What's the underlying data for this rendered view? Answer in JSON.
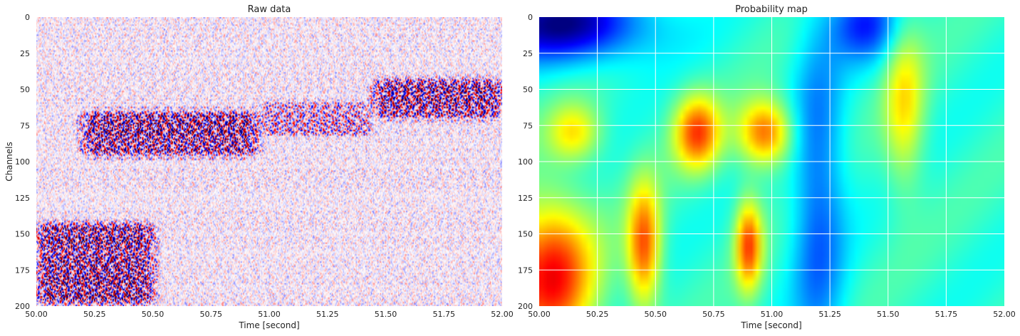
{
  "chart_data": [
    {
      "type": "heatmap",
      "title": "Raw data",
      "xlabel": "Time [second]",
      "ylabel": "Channels",
      "xlim": [
        50.0,
        52.0
      ],
      "ylim": [
        200,
        0
      ],
      "xticks": [
        "50.00",
        "50.25",
        "50.50",
        "50.75",
        "51.00",
        "51.25",
        "51.50",
        "51.75",
        "52.00"
      ],
      "yticks": [
        "0",
        "25",
        "50",
        "75",
        "100",
        "125",
        "150",
        "175",
        "200"
      ],
      "colormap": "seismic",
      "grid": false,
      "features": [
        {
          "x_range": [
            50.2,
            50.95
          ],
          "channel_range": [
            62,
            98
          ],
          "strength": 0.9
        },
        {
          "x_range": [
            50.0,
            50.5
          ],
          "channel_range": [
            140,
            200
          ],
          "strength": 1.0
        },
        {
          "x_range": [
            51.45,
            52.0
          ],
          "channel_range": [
            40,
            72
          ],
          "strength": 0.85
        },
        {
          "x_range": [
            50.95,
            51.45
          ],
          "channel_range": [
            55,
            85
          ],
          "strength": 0.45
        }
      ]
    },
    {
      "type": "heatmap",
      "title": "Probability map",
      "xlabel": "Time [second]",
      "ylabel": "",
      "xlim": [
        50.0,
        52.0
      ],
      "ylim": [
        200,
        0
      ],
      "xticks": [
        "50.00",
        "50.25",
        "50.50",
        "50.75",
        "51.00",
        "51.25",
        "51.50",
        "51.75",
        "52.00"
      ],
      "yticks": [
        "0",
        "25",
        "50",
        "75",
        "100",
        "125",
        "150",
        "175",
        "200"
      ],
      "colormap": "jet",
      "grid": true,
      "grid_color": "#ffffff",
      "background_level": 0.42,
      "features": [
        {
          "x_center": 50.68,
          "x_sigma": 0.07,
          "channel_center": 80,
          "channel_sigma": 18,
          "level": 0.38
        },
        {
          "x_center": 50.97,
          "x_sigma": 0.08,
          "channel_center": 80,
          "channel_sigma": 16,
          "level": 0.36
        },
        {
          "x_center": 50.15,
          "x_sigma": 0.08,
          "channel_center": 80,
          "channel_sigma": 14,
          "level": 0.22
        },
        {
          "x_center": 50.05,
          "x_sigma": 0.13,
          "channel_center": 178,
          "channel_sigma": 35,
          "level": 0.45
        },
        {
          "x_center": 50.45,
          "x_sigma": 0.05,
          "channel_center": 158,
          "channel_sigma": 30,
          "level": 0.38
        },
        {
          "x_center": 50.9,
          "x_sigma": 0.04,
          "channel_center": 158,
          "channel_sigma": 22,
          "level": 0.38
        },
        {
          "x_center": 51.57,
          "x_sigma": 0.06,
          "channel_center": 60,
          "channel_sigma": 40,
          "level": 0.22
        },
        {
          "x_center": 50.1,
          "x_sigma": 0.25,
          "channel_center": 5,
          "channel_sigma": 18,
          "level": -0.4
        },
        {
          "x_center": 51.2,
          "x_sigma": 0.08,
          "channel_center": 130,
          "channel_sigma": 90,
          "level": -0.2
        },
        {
          "x_center": 51.4,
          "x_sigma": 0.1,
          "channel_center": 5,
          "channel_sigma": 18,
          "level": -0.25
        }
      ]
    }
  ]
}
